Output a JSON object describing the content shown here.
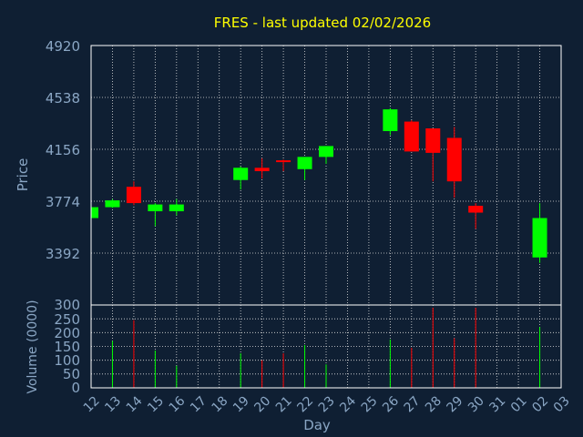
{
  "colors": {
    "background": "#0f1f33",
    "title": "#ffff00",
    "axis_text": "#8aa6c4",
    "tick_text": "#8aa6c4",
    "grid": "#dddddd",
    "frame": "#ffffff",
    "up": "#00ff00",
    "down": "#ff0000"
  },
  "chart_data": [
    {
      "type": "candlestick",
      "title": "FRES - last updated 02/02/2026",
      "ylabel": "Price",
      "yticks": [
        "4920",
        "4538",
        "4156",
        "3774",
        "3392"
      ],
      "ylim": [
        3010,
        4920
      ],
      "grid": true,
      "candles": [
        {
          "day": "12",
          "open": 3650,
          "close": 3730,
          "high": 3740,
          "low": 3640
        },
        {
          "day": "13",
          "open": 3730,
          "close": 3780,
          "high": 3790,
          "low": 3725
        },
        {
          "day": "14",
          "open": 3880,
          "close": 3760,
          "high": 3920,
          "low": 3745
        },
        {
          "day": "15",
          "open": 3700,
          "close": 3750,
          "high": 3760,
          "low": 3590
        },
        {
          "day": "16",
          "open": 3700,
          "close": 3750,
          "high": 3790,
          "low": 3670
        },
        {
          "day": "19",
          "open": 3930,
          "close": 4020,
          "high": 4030,
          "low": 3860
        },
        {
          "day": "20",
          "open": 4020,
          "close": 3995,
          "high": 4090,
          "low": 3940
        },
        {
          "day": "21",
          "open": 4075,
          "close": 4065,
          "high": 4080,
          "low": 3995
        },
        {
          "day": "22",
          "open": 4010,
          "close": 4100,
          "high": 4100,
          "low": 3930
        },
        {
          "day": "23",
          "open": 4100,
          "close": 4180,
          "high": 4180,
          "low": 4050
        },
        {
          "day": "26",
          "open": 4290,
          "close": 4450,
          "high": 4460,
          "low": 4260
        },
        {
          "day": "27",
          "open": 4360,
          "close": 4140,
          "high": 4370,
          "low": 4140
        },
        {
          "day": "28",
          "open": 4310,
          "close": 4130,
          "high": 4310,
          "low": 3920
        },
        {
          "day": "29",
          "open": 4240,
          "close": 3920,
          "high": 4320,
          "low": 3800
        },
        {
          "day": "30",
          "open": 3740,
          "close": 3690,
          "high": 3760,
          "low": 3570
        },
        {
          "day": "02",
          "open": 3360,
          "close": 3650,
          "high": 3760,
          "low": 3320
        }
      ]
    },
    {
      "type": "bar",
      "ylabel": "Volume (0000)",
      "yticks": [
        "300",
        "250",
        "200",
        "150",
        "100",
        "50",
        "0"
      ],
      "ylim": [
        0,
        300
      ],
      "xlabel": "Day",
      "xticks": [
        "12",
        "13",
        "14",
        "15",
        "16",
        "17",
        "18",
        "19",
        "20",
        "21",
        "22",
        "23",
        "24",
        "25",
        "26",
        "27",
        "28",
        "29",
        "30",
        "31",
        "01",
        "02",
        "03"
      ],
      "grid": true,
      "bars": [
        {
          "day": "13",
          "value": 170,
          "dir": "up"
        },
        {
          "day": "14",
          "value": 245,
          "dir": "down"
        },
        {
          "day": "15",
          "value": 135,
          "dir": "up"
        },
        {
          "day": "16",
          "value": 80,
          "dir": "up"
        },
        {
          "day": "19",
          "value": 125,
          "dir": "up"
        },
        {
          "day": "20",
          "value": 100,
          "dir": "down"
        },
        {
          "day": "21",
          "value": 125,
          "dir": "down"
        },
        {
          "day": "22",
          "value": 155,
          "dir": "up"
        },
        {
          "day": "23",
          "value": 85,
          "dir": "up"
        },
        {
          "day": "26",
          "value": 175,
          "dir": "up"
        },
        {
          "day": "27",
          "value": 145,
          "dir": "down"
        },
        {
          "day": "28",
          "value": 290,
          "dir": "down"
        },
        {
          "day": "29",
          "value": 180,
          "dir": "down"
        },
        {
          "day": "30",
          "value": 290,
          "dir": "down"
        },
        {
          "day": "02",
          "value": 220,
          "dir": "up"
        }
      ]
    }
  ]
}
